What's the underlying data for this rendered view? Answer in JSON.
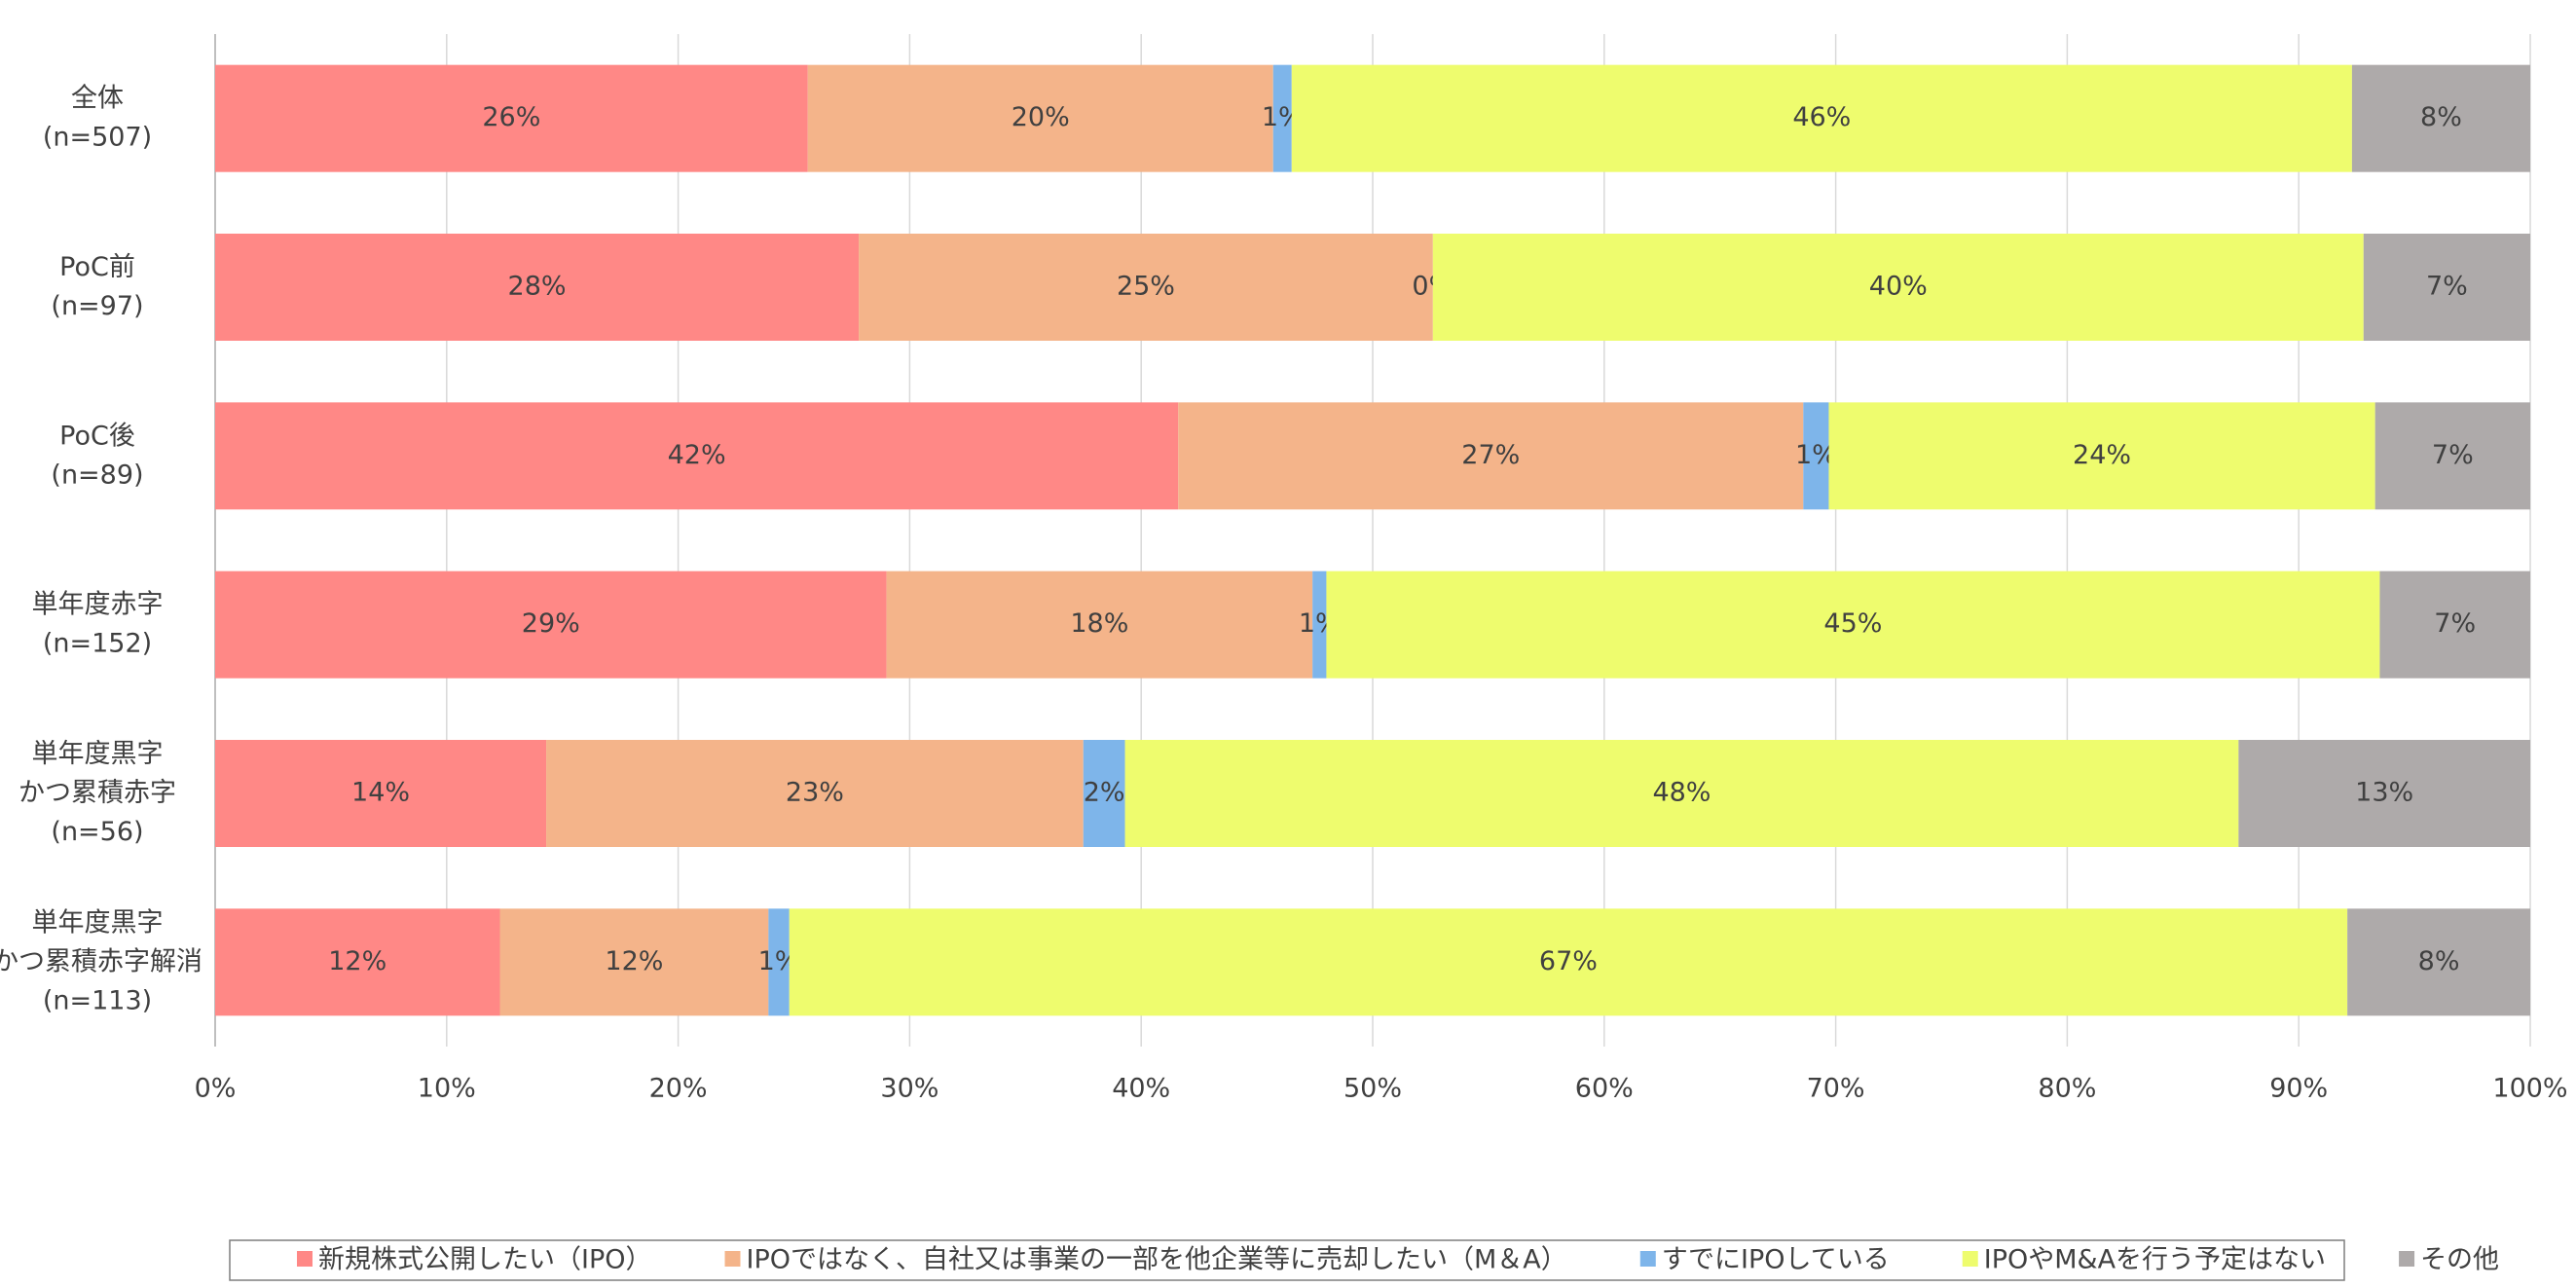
{
  "chart_data": {
    "type": "stacked-bar-horizontal",
    "categories": [
      "全体\n(n=507)",
      "PoC前\n(n=97)",
      "PoC後\n(n=89)",
      "単年度赤字\n(n=152)",
      "単年度黒字\nかつ累積赤字\n(n=56)",
      "単年度黒字\nかつ累積赤字解消\n(n=113)"
    ],
    "series": [
      {
        "name": "新規株式公開したい（IPO）",
        "color": "#ff8886",
        "values": [
          25.6,
          27.8,
          41.6,
          29.0,
          14.3,
          12.3
        ],
        "value_labels": [
          "26%",
          "28%",
          "42%",
          "29%",
          "14%",
          "12%"
        ]
      },
      {
        "name": "IPOではなく、自社又は事業の一部を他企業等に売却したい（M＆A）",
        "color": "#f4b48a",
        "values": [
          20.1,
          24.8,
          27.0,
          18.4,
          23.2,
          11.6
        ],
        "value_labels": [
          "20%",
          "25%",
          "27%",
          "18%",
          "23%",
          "12%"
        ]
      },
      {
        "name": "すでにIPOしている",
        "color": "#7eb5ea",
        "values": [
          0.8,
          0,
          1.1,
          0.6,
          1.8,
          0.9
        ],
        "value_labels": [
          "1%",
          "0%",
          "1%",
          "1%",
          "2%",
          "1%"
        ]
      },
      {
        "name": "IPOやM&Aを行う予定はない",
        "color": "#eefc6e",
        "values": [
          45.8,
          40.2,
          23.6,
          45.5,
          48.1,
          67.3
        ],
        "value_labels": [
          "46%",
          "40%",
          "24%",
          "45%",
          "48%",
          "67%"
        ]
      },
      {
        "name": "その他",
        "color": "#aeaaaa",
        "values": [
          7.7,
          7.2,
          6.7,
          6.5,
          12.6,
          7.9
        ],
        "value_labels": [
          "8%",
          "7%",
          "7%",
          "7%",
          "13%",
          "8%"
        ]
      }
    ],
    "xlim": [
      0,
      100
    ],
    "xticks": [
      {
        "value": 0,
        "label": "0%"
      },
      {
        "value": 10,
        "label": "10%"
      },
      {
        "value": 20,
        "label": "20%"
      },
      {
        "value": 30,
        "label": "30%"
      },
      {
        "value": 40,
        "label": "40%"
      },
      {
        "value": 50,
        "label": "50%"
      },
      {
        "value": 60,
        "label": "60%"
      },
      {
        "value": 70,
        "label": "70%"
      },
      {
        "value": 80,
        "label": "80%"
      },
      {
        "value": 90,
        "label": "90%"
      },
      {
        "value": 100,
        "label": "100%"
      }
    ],
    "grid": true,
    "legend": "bottom"
  }
}
